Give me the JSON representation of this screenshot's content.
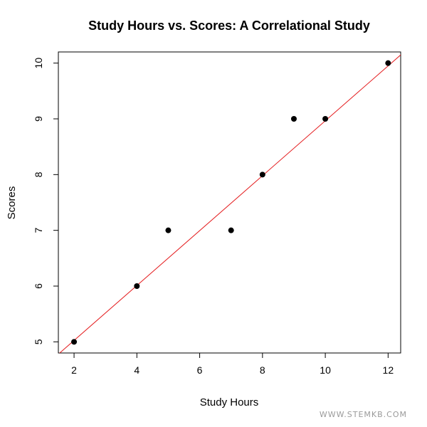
{
  "chart_data": {
    "type": "scatter",
    "title": "Study Hours vs. Scores: A Correlational Study",
    "xlabel": "Study Hours",
    "ylabel": "Scores",
    "xlim": [
      1.5,
      12.4
    ],
    "ylim": [
      4.8,
      10.2
    ],
    "xticks": [
      2,
      4,
      6,
      8,
      10,
      12
    ],
    "yticks": [
      5,
      6,
      7,
      8,
      9,
      10
    ],
    "points": [
      {
        "x": 2,
        "y": 5
      },
      {
        "x": 4,
        "y": 6
      },
      {
        "x": 5,
        "y": 7
      },
      {
        "x": 7,
        "y": 7
      },
      {
        "x": 8,
        "y": 8
      },
      {
        "x": 9,
        "y": 9
      },
      {
        "x": 10,
        "y": 9
      },
      {
        "x": 12,
        "y": 10
      }
    ],
    "regression_line": {
      "slope": 0.4925,
      "intercept": 4.04,
      "color": "#e41a1c"
    },
    "point_color": "#000000",
    "grid": false
  },
  "watermark": "WWW.STEMKB.COM"
}
